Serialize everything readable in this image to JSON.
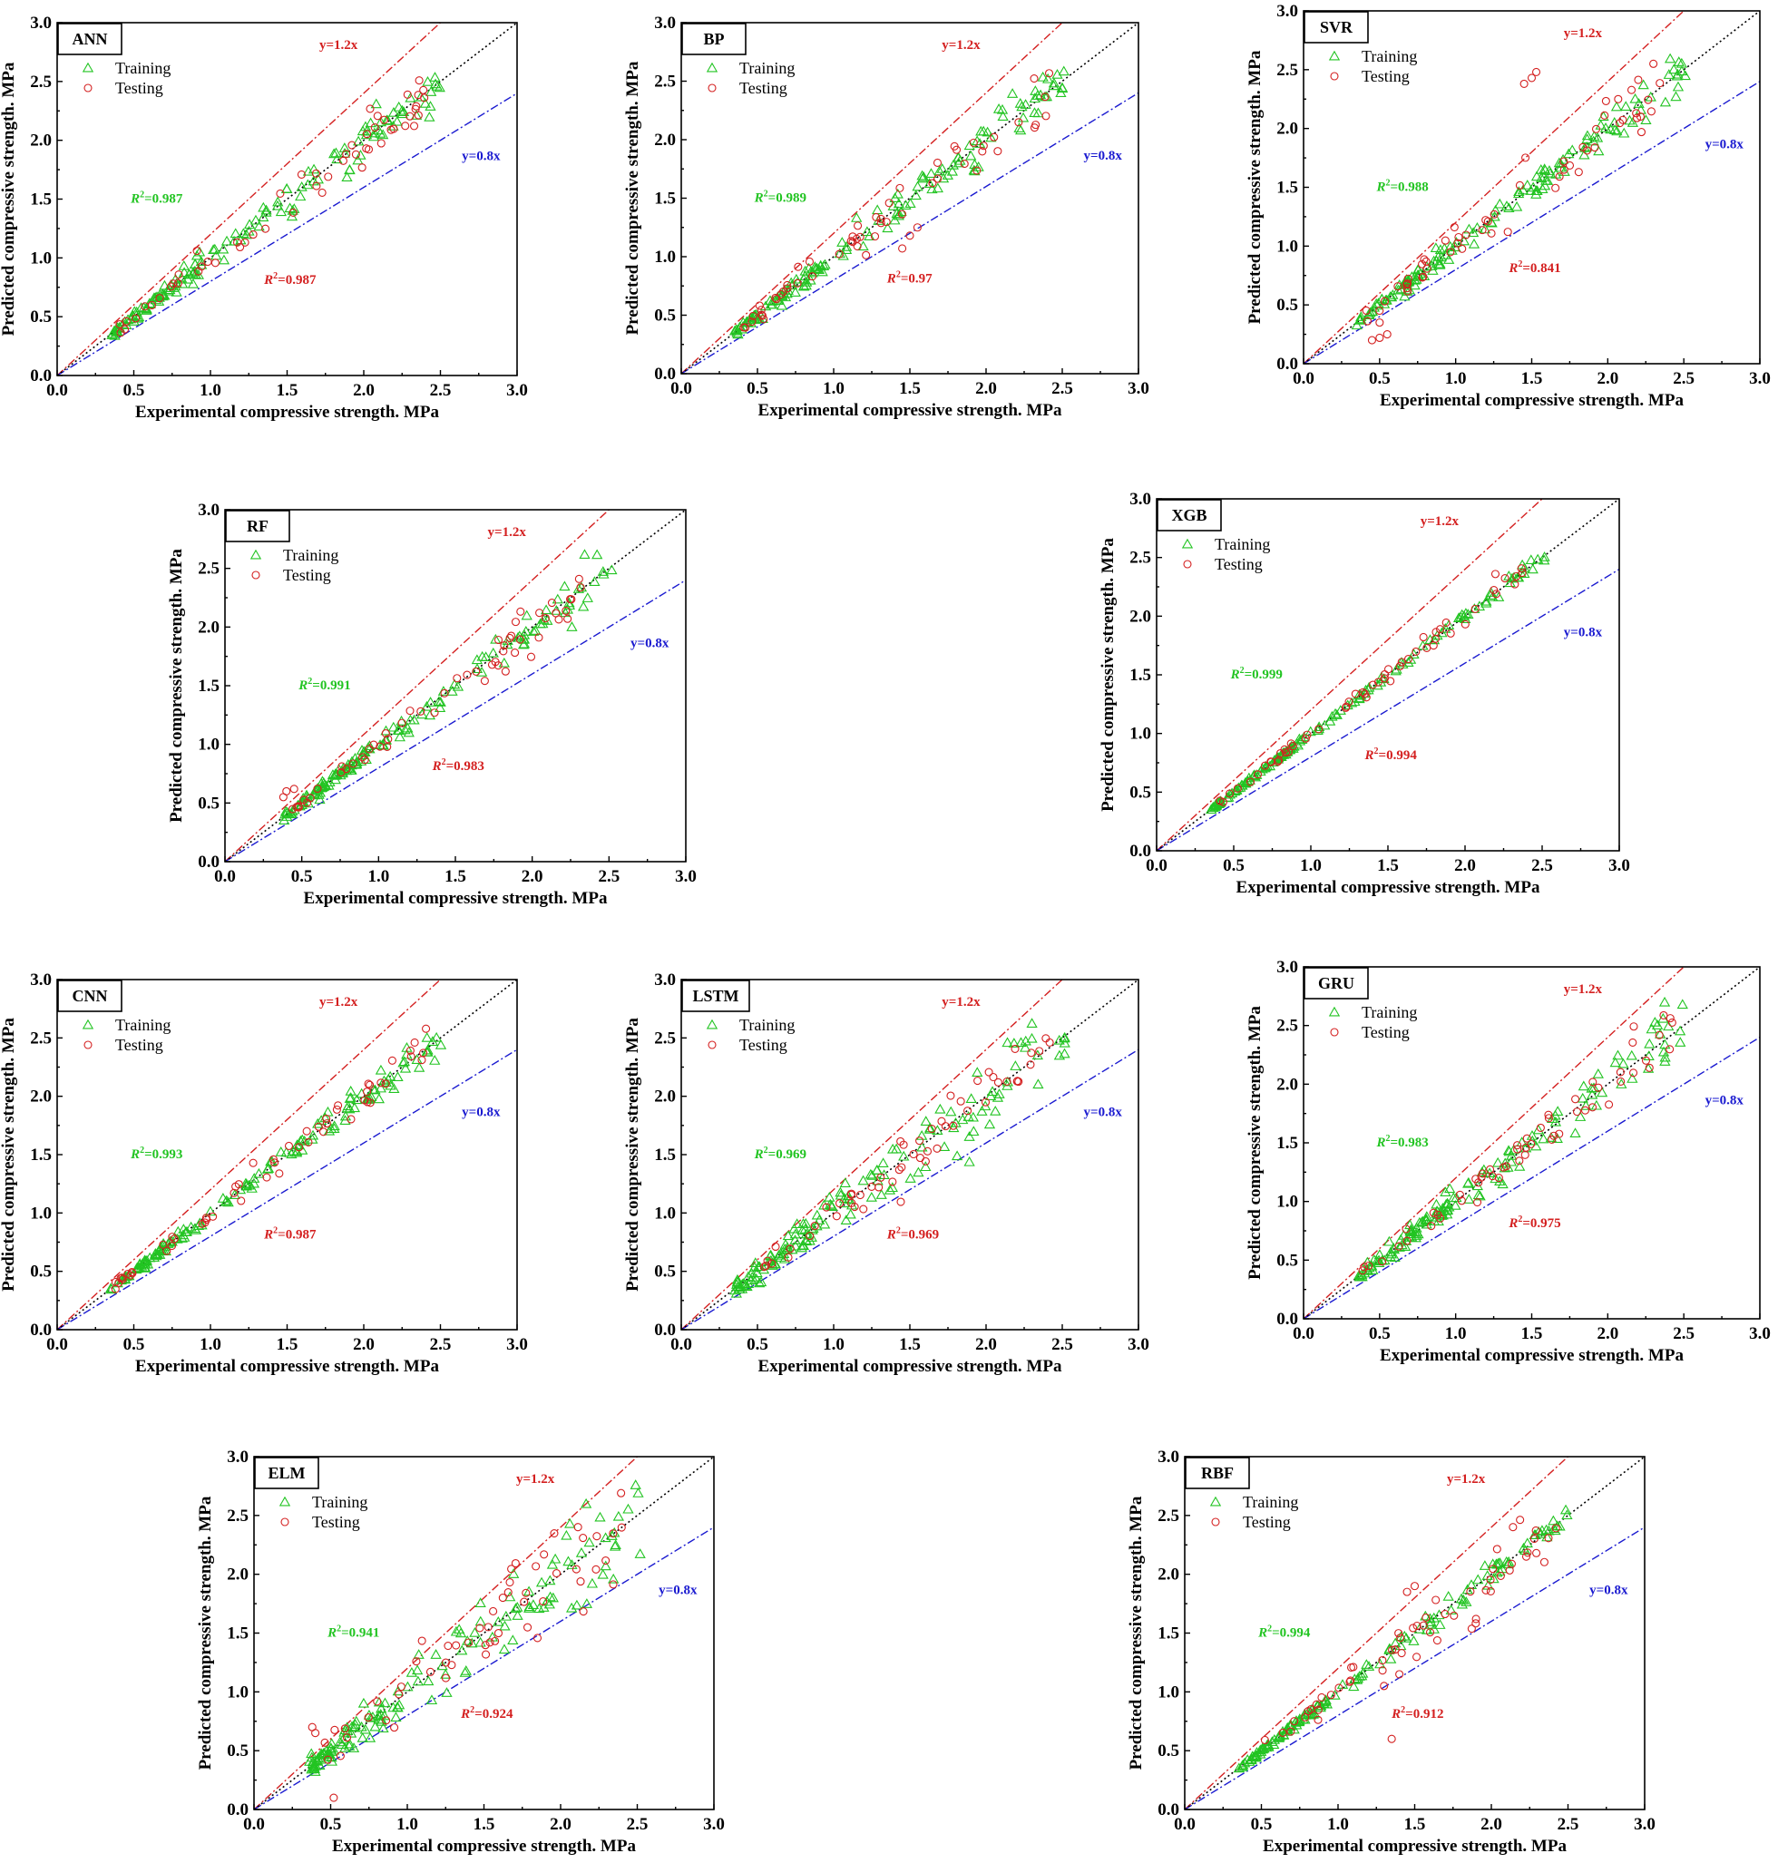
{
  "figure": {
    "colors": {
      "training": "#22c422",
      "testing": "#d42020",
      "upper_line": "#d42020",
      "lower_line": "#1a1ad0",
      "identity_line": "#000000"
    }
  },
  "chart_data": [
    {
      "type": "scatter",
      "title": "ANN",
      "xlabel": "Experimental compressive strength. MPa",
      "ylabel": "Predicted compressive strength. MPa",
      "xlim": [
        0,
        3.0
      ],
      "ylim": [
        0,
        3.0
      ],
      "ticks": [
        "0.0",
        "0.5",
        "1.0",
        "1.5",
        "2.0",
        "2.5",
        "3.0"
      ],
      "legend": [
        "Training",
        "Testing"
      ],
      "upper_label": "y=1.2x",
      "lower_label": "y=0.8x",
      "r2_train": "=0.987",
      "r2_test": "=0.987",
      "noise_train": 0.06,
      "noise_test": 0.07,
      "outliers": []
    },
    {
      "type": "scatter",
      "title": "BP",
      "xlabel": "Experimental compressive strength. MPa",
      "ylabel": "Predicted compressive strength. MPa",
      "xlim": [
        0,
        3.0
      ],
      "ylim": [
        0,
        3.0
      ],
      "ticks": [
        "0.0",
        "0.5",
        "1.0",
        "1.5",
        "2.0",
        "2.5",
        "3.0"
      ],
      "legend": [
        "Training",
        "Testing"
      ],
      "upper_label": "y=1.2x",
      "lower_label": "y=0.8x",
      "r2_train": "=0.989",
      "r2_test": "=0.97",
      "noise_train": 0.06,
      "noise_test": 0.08,
      "outliers": [
        [
          1.45,
          1.07
        ],
        [
          1.5,
          1.18
        ],
        [
          1.55,
          1.25
        ]
      ]
    },
    {
      "type": "scatter",
      "title": "SVR",
      "xlabel": "Experimental compressive strength. MPa",
      "ylabel": "Predicted compressive strength. MPa",
      "xlim": [
        0,
        3.0
      ],
      "ylim": [
        0,
        3.0
      ],
      "ticks": [
        "0.0",
        "0.5",
        "1.0",
        "1.5",
        "2.0",
        "2.5",
        "3.0"
      ],
      "legend": [
        "Training",
        "Testing"
      ],
      "upper_label": "y=1.2x",
      "lower_label": "y=0.8x",
      "r2_train": "=0.988",
      "r2_test": "=0.841",
      "noise_train": 0.05,
      "noise_test": 0.08,
      "outliers": [
        [
          1.45,
          2.38
        ],
        [
          1.5,
          2.43
        ],
        [
          1.53,
          2.48
        ],
        [
          0.45,
          0.2
        ],
        [
          0.5,
          0.22
        ],
        [
          0.55,
          0.25
        ],
        [
          0.5,
          0.35
        ],
        [
          2.3,
          2.55
        ]
      ]
    },
    {
      "type": "scatter",
      "title": "RF",
      "xlabel": "Experimental compressive strength. MPa",
      "ylabel": "Predicted compressive strength. MPa",
      "xlim": [
        0,
        3.0
      ],
      "ylim": [
        0,
        3.0
      ],
      "ticks": [
        "0.0",
        "0.5",
        "1.0",
        "1.5",
        "2.0",
        "2.5",
        "3.0"
      ],
      "legend": [
        "Training",
        "Testing"
      ],
      "upper_label": "y=1.2x",
      "lower_label": "y=0.8x",
      "r2_train": "=0.991",
      "r2_test": "=0.983",
      "noise_train": 0.05,
      "noise_test": 0.06,
      "outliers": [
        [
          0.4,
          0.6
        ],
        [
          0.45,
          0.62
        ],
        [
          0.38,
          0.55
        ]
      ]
    },
    {
      "type": "scatter",
      "title": "XGB",
      "xlabel": "Experimental compressive strength. MPa",
      "ylabel": "Predicted compressive strength. MPa",
      "xlim": [
        0,
        3.0
      ],
      "ylim": [
        0,
        3.0
      ],
      "ticks": [
        "0.0",
        "0.5",
        "1.0",
        "1.5",
        "2.0",
        "2.5",
        "3.0"
      ],
      "legend": [
        "Training",
        "Testing"
      ],
      "upper_label": "y=1.2x",
      "lower_label": "y=0.8x",
      "r2_train": "=0.999",
      "r2_test": "=0.994",
      "noise_train": 0.015,
      "noise_test": 0.03,
      "outliers": []
    },
    {
      "type": "scatter",
      "title": "CNN",
      "xlabel": "Experimental compressive strength. MPa",
      "ylabel": "Predicted compressive strength. MPa",
      "xlim": [
        0,
        3.0
      ],
      "ylim": [
        0,
        3.0
      ],
      "ticks": [
        "0.0",
        "0.5",
        "1.0",
        "1.5",
        "2.0",
        "2.5",
        "3.0"
      ],
      "legend": [
        "Training",
        "Testing"
      ],
      "upper_label": "y=1.2x",
      "lower_label": "y=0.8x",
      "r2_train": "=0.993",
      "r2_test": "=0.987",
      "noise_train": 0.04,
      "noise_test": 0.05,
      "outliers": []
    },
    {
      "type": "scatter",
      "title": "LSTM",
      "xlabel": "Experimental compressive strength. MPa",
      "ylabel": "Predicted compressive strength. MPa",
      "xlim": [
        0,
        3.0
      ],
      "ylim": [
        0,
        3.0
      ],
      "ticks": [
        "0.0",
        "0.5",
        "1.0",
        "1.5",
        "2.0",
        "2.5",
        "3.0"
      ],
      "legend": [
        "Training",
        "Testing"
      ],
      "upper_label": "y=1.2x",
      "lower_label": "y=0.8x",
      "r2_train": "=0.969",
      "r2_test": "=0.969",
      "noise_train": 0.1,
      "noise_test": 0.1,
      "outliers": []
    },
    {
      "type": "scatter",
      "title": "GRU",
      "xlabel": "Experimental compressive strength. MPa",
      "ylabel": "Predicted compressive strength. MPa",
      "xlim": [
        0,
        3.0
      ],
      "ylim": [
        0,
        3.0
      ],
      "ticks": [
        "0.0",
        "0.5",
        "1.0",
        "1.5",
        "2.0",
        "2.5",
        "3.0"
      ],
      "legend": [
        "Training",
        "Testing"
      ],
      "upper_label": "y=1.2x",
      "lower_label": "y=0.8x",
      "r2_train": "=0.983",
      "r2_test": "=0.975",
      "noise_train": 0.07,
      "noise_test": 0.08,
      "outliers": []
    },
    {
      "type": "scatter",
      "title": "ELM",
      "xlabel": "Experimental compressive strength. MPa",
      "ylabel": "Predicted compressive strength. MPa",
      "xlim": [
        0,
        3.0
      ],
      "ylim": [
        0,
        3.0
      ],
      "ticks": [
        "0.0",
        "0.5",
        "1.0",
        "1.5",
        "2.0",
        "2.5",
        "3.0"
      ],
      "legend": [
        "Training",
        "Testing"
      ],
      "upper_label": "y=1.2x",
      "lower_label": "y=0.8x",
      "r2_train": "=0.941",
      "r2_test": "=0.924",
      "noise_train": 0.14,
      "noise_test": 0.16,
      "outliers": [
        [
          0.52,
          0.1
        ],
        [
          0.4,
          0.65
        ],
        [
          0.38,
          0.7
        ]
      ]
    },
    {
      "type": "scatter",
      "title": "RBF",
      "xlabel": "Experimental compressive strength. MPa",
      "ylabel": "Predicted compressive strength. MPa",
      "xlim": [
        0,
        3.0
      ],
      "ylim": [
        0,
        3.0
      ],
      "ticks": [
        "0.0",
        "0.5",
        "1.0",
        "1.5",
        "2.0",
        "2.5",
        "3.0"
      ],
      "legend": [
        "Training",
        "Testing"
      ],
      "upper_label": "y=1.2x",
      "lower_label": "y=0.8x",
      "r2_train": "=0.994",
      "r2_test": "=0.912",
      "noise_train": 0.03,
      "noise_test": 0.1,
      "outliers": [
        [
          1.35,
          0.6
        ],
        [
          1.4,
          1.15
        ],
        [
          1.5,
          1.9
        ],
        [
          1.45,
          1.85
        ],
        [
          1.9,
          1.62
        ],
        [
          1.3,
          1.05
        ]
      ]
    }
  ]
}
